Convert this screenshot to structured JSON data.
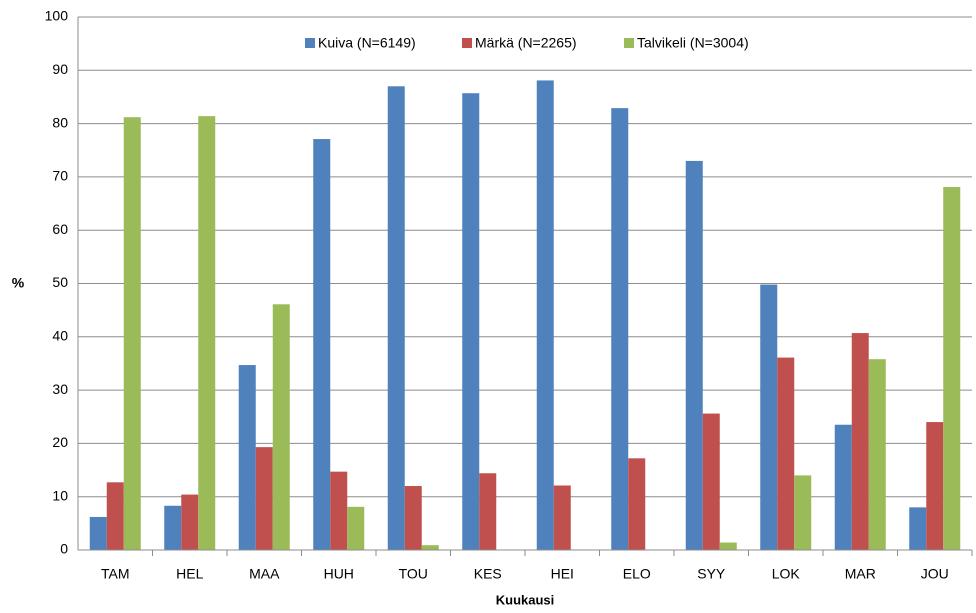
{
  "chart_data": {
    "type": "bar",
    "x_label": "Kuukausi",
    "y_label": "%",
    "categories": [
      "TAM",
      "HEL",
      "MAA",
      "HUH",
      "TOU",
      "KES",
      "HEI",
      "ELO",
      "SYY",
      "LOK",
      "MAR",
      "JOU"
    ],
    "series": [
      {
        "name": "Kuiva (N=6149)",
        "color": "#4f81bd",
        "values": [
          6.2,
          8.3,
          34.7,
          77.1,
          87.0,
          85.7,
          88.1,
          82.9,
          73.0,
          49.8,
          23.5,
          8.0
        ]
      },
      {
        "name": "Märkä (N=2265)",
        "color": "#c0504d",
        "values": [
          12.7,
          10.4,
          19.3,
          14.7,
          12.0,
          14.4,
          12.1,
          17.2,
          25.6,
          36.1,
          40.7,
          24.0
        ]
      },
      {
        "name": "Talvikeli (N=3004)",
        "color": "#9bbb59",
        "values": [
          81.2,
          81.4,
          46.1,
          8.1,
          0.9,
          0,
          0,
          0,
          1.4,
          14.0,
          35.8,
          68.1
        ]
      }
    ],
    "ylim": [
      0,
      100
    ],
    "yticks": [
      0,
      10,
      20,
      30,
      40,
      50,
      60,
      70,
      80,
      90,
      100
    ],
    "grid": true,
    "legend": "top"
  }
}
